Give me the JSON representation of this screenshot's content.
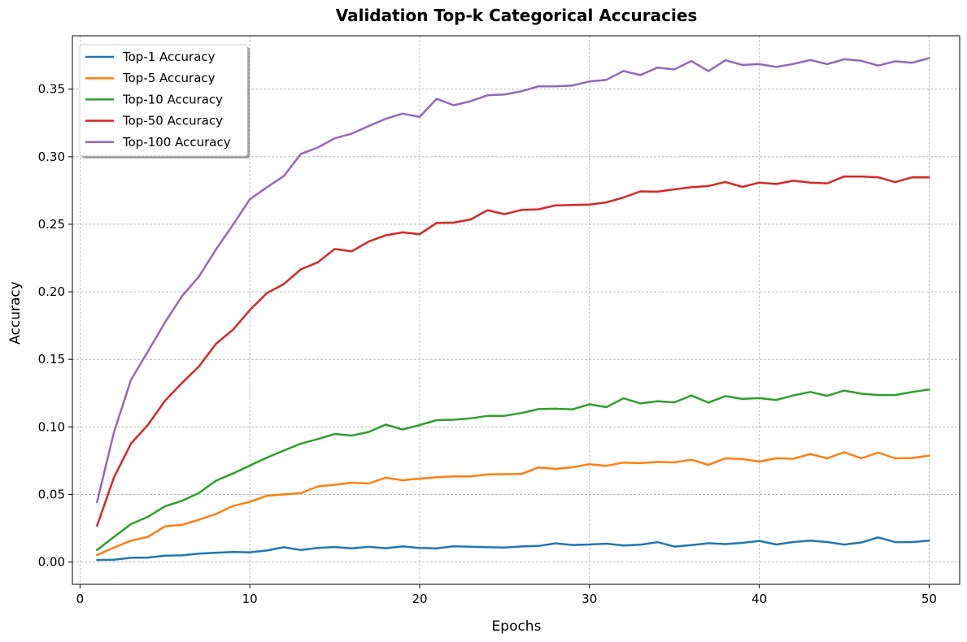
{
  "chart_data": {
    "type": "line",
    "title": "Validation Top-k Categorical Accuracies",
    "xlabel": "Epochs",
    "ylabel": "Accuracy",
    "xlim": [
      -0.45,
      51.8
    ],
    "ylim": [
      -0.0165,
      0.3895
    ],
    "xticks": [
      0,
      10,
      20,
      30,
      40,
      50
    ],
    "xtick_labels": [
      "0",
      "10",
      "20",
      "30",
      "40",
      "50"
    ],
    "yticks": [
      0.0,
      0.05,
      0.1,
      0.15,
      0.2,
      0.25,
      0.3,
      0.35
    ],
    "ytick_labels": [
      "0.00",
      "0.05",
      "0.10",
      "0.15",
      "0.20",
      "0.25",
      "0.30",
      "0.35"
    ],
    "grid": true,
    "legend_position": "upper-left",
    "x": [
      1,
      2,
      3,
      4,
      5,
      6,
      7,
      8,
      9,
      10,
      11,
      12,
      13,
      14,
      15,
      16,
      17,
      18,
      19,
      20,
      21,
      22,
      23,
      24,
      25,
      26,
      27,
      28,
      29,
      30,
      31,
      32,
      33,
      34,
      35,
      36,
      37,
      38,
      39,
      40,
      41,
      42,
      43,
      44,
      45,
      46,
      47,
      48,
      49,
      50
    ],
    "series": [
      {
        "name": "Top-1 Accuracy",
        "color": "#1f77b4",
        "values": [
          0.0015,
          0.0017,
          0.0031,
          0.0033,
          0.0047,
          0.0049,
          0.0062,
          0.0069,
          0.0074,
          0.0072,
          0.0085,
          0.0109,
          0.0089,
          0.0104,
          0.0111,
          0.0101,
          0.0112,
          0.0102,
          0.0115,
          0.0104,
          0.0101,
          0.0116,
          0.0113,
          0.0109,
          0.0107,
          0.0115,
          0.0119,
          0.0138,
          0.0126,
          0.013,
          0.0136,
          0.0122,
          0.0128,
          0.0147,
          0.0114,
          0.0125,
          0.0139,
          0.0133,
          0.0142,
          0.0156,
          0.013,
          0.0148,
          0.0158,
          0.0148,
          0.0129,
          0.0145,
          0.0182,
          0.0147,
          0.0148,
          0.0158
        ]
      },
      {
        "name": "Top-5 Accuracy",
        "color": "#ff7f0e",
        "values": [
          0.0052,
          0.0106,
          0.0158,
          0.0186,
          0.0263,
          0.0275,
          0.0313,
          0.0355,
          0.0414,
          0.0445,
          0.049,
          0.05,
          0.0509,
          0.0559,
          0.0572,
          0.0587,
          0.0581,
          0.0624,
          0.0605,
          0.0617,
          0.0628,
          0.0634,
          0.0634,
          0.0648,
          0.065,
          0.0652,
          0.07,
          0.0689,
          0.0701,
          0.0724,
          0.0712,
          0.0736,
          0.0732,
          0.0741,
          0.0737,
          0.0757,
          0.0719,
          0.0767,
          0.0762,
          0.0743,
          0.0768,
          0.0764,
          0.0799,
          0.0767,
          0.0813,
          0.0767,
          0.081,
          0.0767,
          0.077,
          0.0788
        ]
      },
      {
        "name": "Top-10 Accuracy",
        "color": "#2ca02c",
        "values": [
          0.0089,
          0.0186,
          0.028,
          0.0335,
          0.0412,
          0.0453,
          0.0511,
          0.0601,
          0.0655,
          0.0714,
          0.0773,
          0.0825,
          0.0876,
          0.091,
          0.0948,
          0.0936,
          0.0963,
          0.1017,
          0.0981,
          0.1014,
          0.105,
          0.1053,
          0.1063,
          0.1081,
          0.1082,
          0.1103,
          0.1132,
          0.1135,
          0.113,
          0.1167,
          0.1146,
          0.1212,
          0.1174,
          0.119,
          0.1182,
          0.1232,
          0.118,
          0.1228,
          0.1207,
          0.1213,
          0.1199,
          0.1233,
          0.1259,
          0.123,
          0.1269,
          0.1246,
          0.1236,
          0.1236,
          0.1258,
          0.1277
        ]
      },
      {
        "name": "Top-50 Accuracy",
        "color": "#d62728",
        "values": [
          0.0268,
          0.0627,
          0.0876,
          0.1015,
          0.1193,
          0.1325,
          0.1447,
          0.1614,
          0.1718,
          0.1865,
          0.199,
          0.2057,
          0.2166,
          0.2218,
          0.2317,
          0.2299,
          0.2372,
          0.2418,
          0.244,
          0.2426,
          0.251,
          0.2512,
          0.2535,
          0.2604,
          0.2574,
          0.2606,
          0.261,
          0.264,
          0.2642,
          0.2646,
          0.2662,
          0.2698,
          0.2743,
          0.2741,
          0.2758,
          0.2774,
          0.2783,
          0.2813,
          0.2776,
          0.2808,
          0.2798,
          0.2822,
          0.2808,
          0.2803,
          0.2853,
          0.2853,
          0.2847,
          0.2812,
          0.2847,
          0.2847
        ]
      },
      {
        "name": "Top-100 Accuracy",
        "color": "#9467bd",
        "values": [
          0.0442,
          0.0962,
          0.1348,
          0.1558,
          0.1773,
          0.1967,
          0.2113,
          0.2312,
          0.2495,
          0.2685,
          0.2773,
          0.2857,
          0.3019,
          0.3068,
          0.3136,
          0.3171,
          0.3227,
          0.328,
          0.3319,
          0.3294,
          0.3428,
          0.3381,
          0.341,
          0.3455,
          0.346,
          0.3484,
          0.3521,
          0.352,
          0.3527,
          0.3557,
          0.3569,
          0.3634,
          0.3604,
          0.3659,
          0.3646,
          0.3708,
          0.3633,
          0.3714,
          0.3679,
          0.3685,
          0.3664,
          0.3686,
          0.3716,
          0.3685,
          0.3721,
          0.371,
          0.3674,
          0.3706,
          0.3695,
          0.373
        ]
      }
    ]
  }
}
